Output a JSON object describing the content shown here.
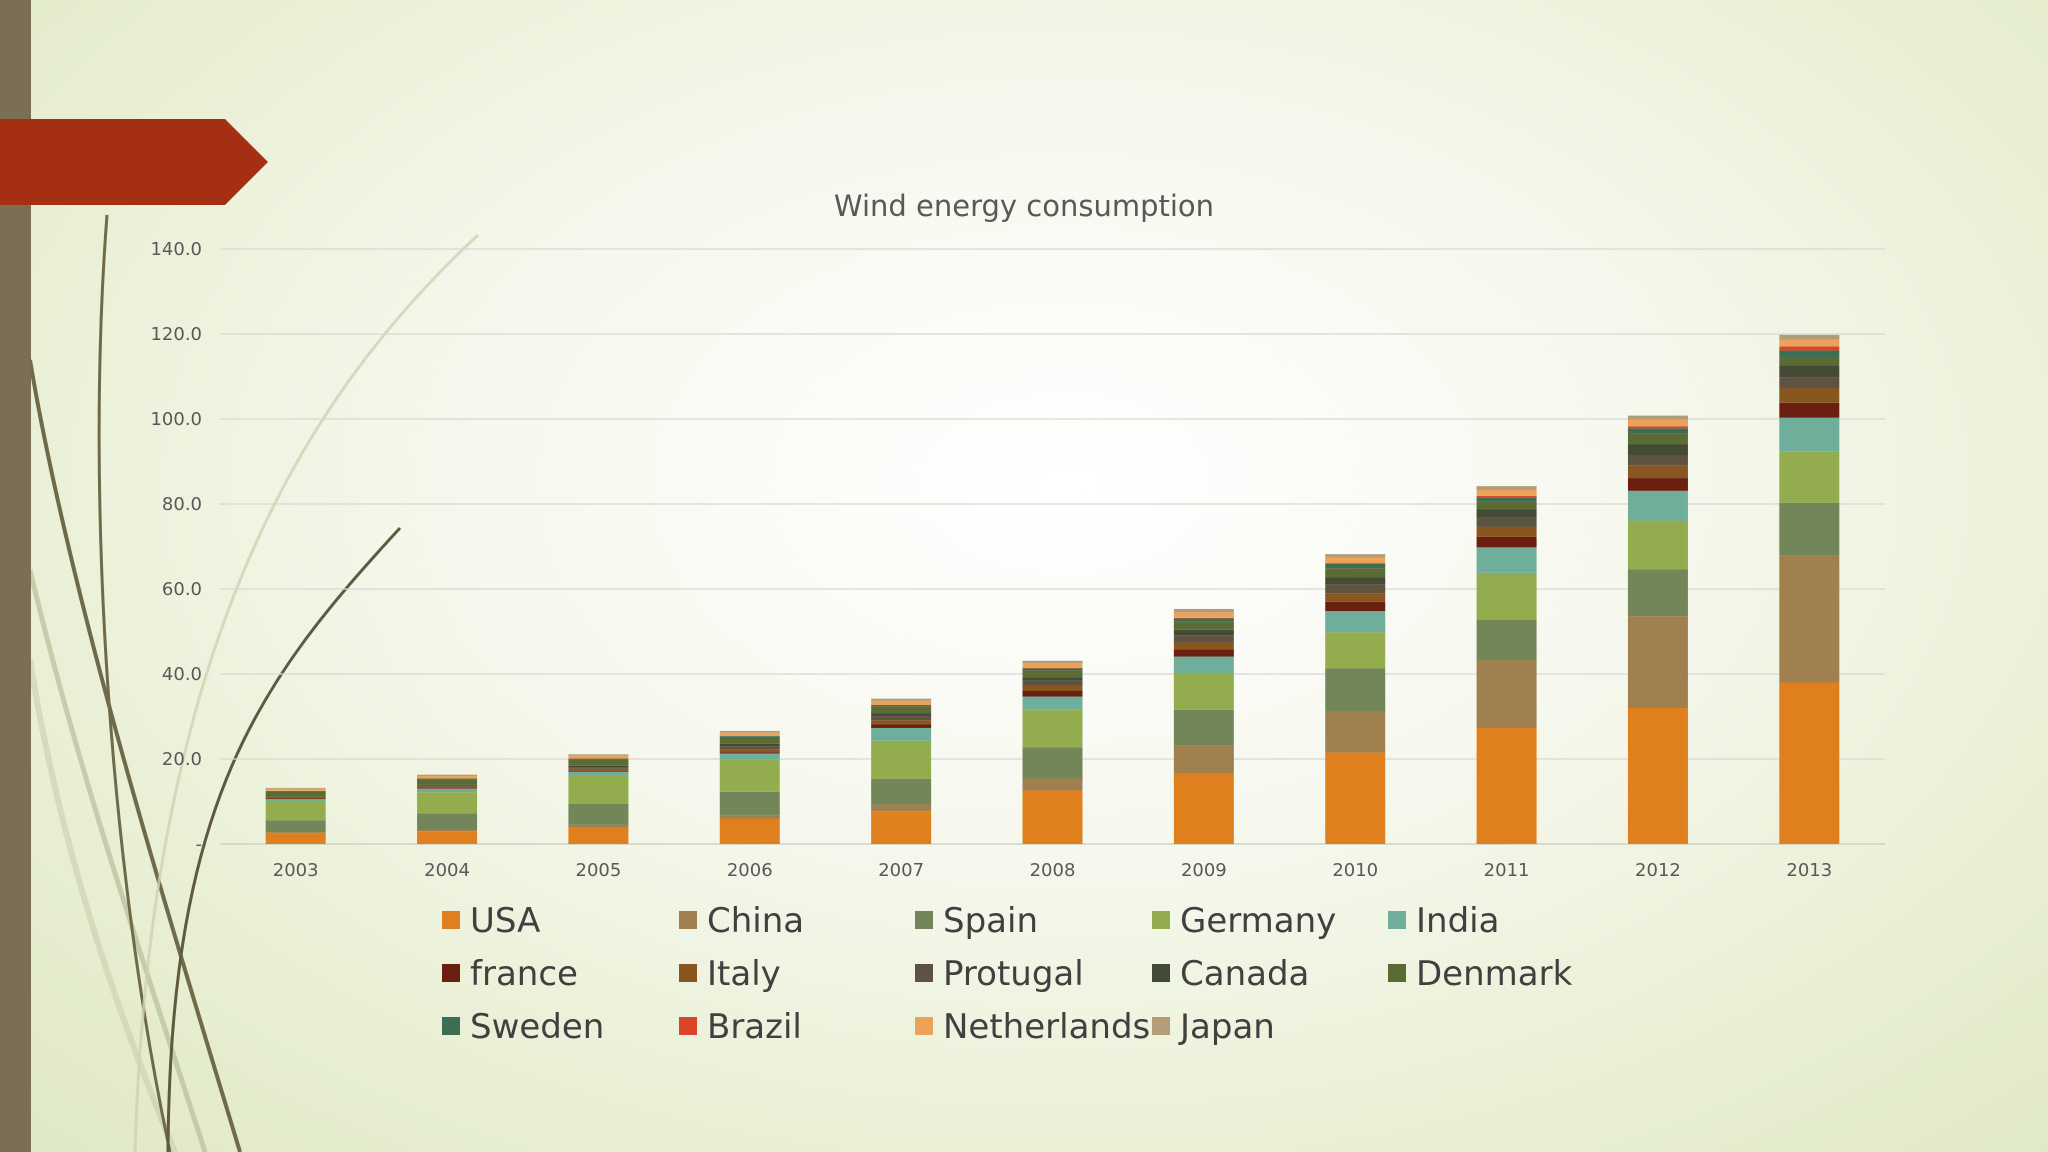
{
  "slide": {
    "left_bar_color": "#7a6f55",
    "accent_color": "#a52f12",
    "curve_color": "#6f6b4a"
  },
  "chart_data": {
    "type": "bar",
    "stacked": true,
    "title": "Wind energy consumption",
    "xlabel": "",
    "ylabel": "",
    "ylim": [
      0,
      140
    ],
    "yticks": [
      0,
      20,
      40,
      60,
      80,
      100,
      120,
      140
    ],
    "ytick_labels": [
      "-",
      "20.0",
      "40.0",
      "60.0",
      "80.0",
      "100.0",
      "120.0",
      "140.0"
    ],
    "grid": true,
    "legend_position": "bottom",
    "categories": [
      "2003",
      "2004",
      "2005",
      "2006",
      "2007",
      "2008",
      "2009",
      "2010",
      "2011",
      "2012",
      "2013"
    ],
    "series": [
      {
        "name": "USA",
        "color": "#e07f1e",
        "values": [
          2.5,
          3.0,
          4.0,
          6.0,
          7.7,
          12.6,
          16.6,
          21.5,
          27.3,
          32.0,
          38.0
        ]
      },
      {
        "name": "China",
        "color": "#a0804e",
        "values": [
          0.3,
          0.3,
          0.5,
          0.8,
          1.6,
          2.8,
          6.5,
          9.8,
          16.0,
          21.6,
          29.8
        ]
      },
      {
        "name": "Spain",
        "color": "#73865a",
        "values": [
          2.8,
          3.9,
          5.0,
          5.5,
          6.0,
          7.3,
          8.5,
          10.0,
          9.5,
          11.0,
          12.5
        ]
      },
      {
        "name": "Germany",
        "color": "#93ad4e",
        "values": [
          4.5,
          5.0,
          6.5,
          7.5,
          9.0,
          9.0,
          8.5,
          8.5,
          11.0,
          11.5,
          12.0
        ]
      },
      {
        "name": "India",
        "color": "#6fae9a",
        "values": [
          0.5,
          0.8,
          1.0,
          1.5,
          3.0,
          3.0,
          4.0,
          5.0,
          6.0,
          7.0,
          8.0
        ]
      },
      {
        "name": "france",
        "color": "#6a1f10",
        "values": [
          0.1,
          0.1,
          0.2,
          0.3,
          0.9,
          1.3,
          1.7,
          2.2,
          2.5,
          3.0,
          3.5
        ]
      },
      {
        "name": "Italy",
        "color": "#8a5620",
        "values": [
          0.3,
          0.4,
          0.5,
          0.7,
          0.9,
          1.2,
          1.6,
          2.0,
          2.3,
          3.0,
          3.5
        ]
      },
      {
        "name": "Protugal",
        "color": "#5e5340",
        "values": [
          0.1,
          0.2,
          0.4,
          0.7,
          1.0,
          1.2,
          1.7,
          2.0,
          2.2,
          2.3,
          2.5
        ]
      },
      {
        "name": "Canada",
        "color": "#434a36",
        "values": [
          0.1,
          0.2,
          0.3,
          0.6,
          0.7,
          0.8,
          1.3,
          1.7,
          2.0,
          2.6,
          2.8
        ]
      },
      {
        "name": "Denmark",
        "color": "#5b6b35",
        "values": [
          1.2,
          1.3,
          1.5,
          1.6,
          1.6,
          1.6,
          1.9,
          2.2,
          1.7,
          2.5,
          2.0
        ]
      },
      {
        "name": "Sweden",
        "color": "#3b6e55",
        "values": [
          0.1,
          0.2,
          0.2,
          0.2,
          0.3,
          0.5,
          0.8,
          1.0,
          1.1,
          1.3,
          1.5
        ]
      },
      {
        "name": "Brazil",
        "color": "#d94627",
        "values": [
          0.0,
          0.0,
          0.0,
          0.0,
          0.0,
          0.1,
          0.1,
          0.2,
          0.3,
          0.5,
          1.0
        ]
      },
      {
        "name": "Netherlands",
        "color": "#eda25a",
        "values": [
          0.5,
          0.6,
          0.7,
          0.8,
          1.0,
          1.1,
          1.3,
          1.3,
          1.4,
          1.5,
          1.6
        ]
      },
      {
        "name": "Japan",
        "color": "#b39c77",
        "values": [
          0.2,
          0.3,
          0.3,
          0.4,
          0.5,
          0.6,
          0.8,
          0.8,
          0.9,
          1.0,
          1.1
        ]
      }
    ]
  }
}
